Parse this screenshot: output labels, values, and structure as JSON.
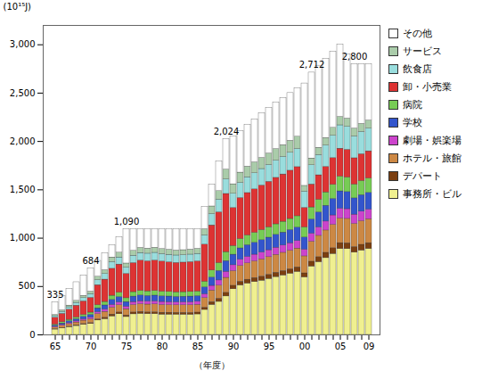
{
  "chart_data": {
    "type": "bar",
    "stacked": true,
    "xlabel": "（年度）",
    "ylabel": "(10¹⁵J)",
    "categories": [
      "65",
      null,
      null,
      null,
      null,
      "70",
      null,
      null,
      null,
      null,
      "75",
      null,
      null,
      null,
      null,
      "80",
      null,
      null,
      null,
      null,
      "85",
      null,
      null,
      null,
      null,
      "90",
      null,
      null,
      null,
      null,
      "95",
      null,
      null,
      null,
      null,
      "00",
      null,
      null,
      null,
      null,
      "05",
      null,
      null,
      null,
      "09"
    ],
    "series": [
      {
        "name": "事務所・ビル",
        "color": "#f0f090",
        "values": [
          55,
          67.1,
          79.4,
          92,
          104.8,
          113.4,
          148.8,
          163.99,
          192.3,
          214,
          185,
          212.9,
          218,
          214.9,
          214.9,
          210,
          209.9,
          209.8,
          209,
          208.5,
          212,
          258.4,
          310,
          341.6,
          397.6,
          472,
          511.6,
          530.8,
          546.9,
          561.05,
          578.9,
          598.6,
          615.3,
          633.6,
          651.8,
          594.4,
          707.2,
          752.3,
          793.968,
          837.408,
          888,
          887.4,
          850.8,
          872.3,
          888.5
        ]
      },
      {
        "name": "デパート",
        "color": "#7b3f10",
        "values": [
          4,
          4.9,
          5.8,
          6.6,
          8.1,
          9.6,
          12.8,
          14.812,
          18.1,
          18.3,
          16,
          18.8,
          19.62,
          18.9,
          19.6,
          19,
          19.2,
          18.4,
          19.1,
          18.9,
          19,
          24,
          28.9,
          33.1,
          37.6,
          36,
          38.7,
          40,
          41.2,
          42.365,
          43.6,
          44.5,
          45.6,
          45.7,
          46.9,
          42.2,
          49.7,
          52.4,
          54.8352,
          58.56,
          61.2,
          60.32,
          58.2,
          59.2,
          60.3
        ]
      },
      {
        "name": "ホテル・旅館",
        "color": "#cc8844",
        "values": [
          18,
          21.7,
          26.2,
          30,
          34.3,
          39.3,
          53.1,
          59.248,
          71.3,
          74.6,
          65,
          77.2,
          79.57,
          79.7,
          80.6,
          80,
          78.7,
          77.8,
          78.4,
          79.4,
          80,
          98.6,
          119.9,
          135,
          154.7,
          151.7,
          162.6,
          168.9,
          172.8,
          177.475,
          181.1,
          184.7,
          188,
          191.8,
          194.4,
          175.4,
          207.3,
          219.6,
          230.7648,
          242.4384,
          254.4,
          251.72,
          239.1,
          244.5,
          247.7
        ]
      },
      {
        "name": "劇場・娯楽場",
        "color": "#cc44cc",
        "values": [
          7,
          8.9,
          10.7,
          12.2,
          13.5,
          15.7,
          21.3,
          23.276,
          28.3,
          29.3,
          26,
          30.9,
          31.61,
          31.4,
          32,
          32,
          31.3,
          30.7,
          31.1,
          31.8,
          32,
          39.7,
          48.2,
          53.7,
          62.2,
          60.7,
          64.8,
          67.3,
          68.7,
          70.99,
          72.2,
          74.1,
          75.2,
          76.5,
          77.8,
          70,
          83.1,
          88,
          92.5344,
          97.2096,
          102,
          100.92,
          95.8,
          98,
          99.1
        ]
      },
      {
        "name": "学校",
        "color": "#3355cc",
        "values": [
          13,
          15.8,
          18.4,
          21.6,
          25.3,
          28.8,
          39.3,
          43.378,
          52,
          55,
          48,
          56.3,
          58.86,
          57.6,
          58.9,
          58,
          57.5,
          56.3,
          57.3,
          57.6,
          58,
          70.9,
          86.8,
          97.8,
          111.32,
          109,
          117.1,
          121,
          123.6,
          127.095,
          129.5,
          132.3,
          134.5,
          137,
          139.5,
          124.6,
          146.8,
          154.9,
          163.3632,
          170.9952,
          178.8,
          176.32,
          168,
          171.2,
          173.4
        ]
      },
      {
        "name": "病院",
        "color": "#77cc55",
        "values": [
          10,
          12.8,
          15.5,
          17.8,
          20.8,
          23.6,
          31.9,
          35.972,
          43,
          45.2,
          39,
          46.3,
          47.96,
          48.2,
          48.6,
          48,
          47.4,
          47.1,
          47.2,
          47.7,
          48,
          58.9,
          71.6,
          81.3,
          92.5,
          89.9,
          96.6,
          100.5,
          103,
          105.34,
          107.8,
          109.5,
          111.7,
          114.2,
          116.6,
          105.5,
          124.2,
          131.5,
          138.2304,
          145.2288,
          152.4,
          150.8,
          143.2,
          146.5,
          148.6
        ]
      },
      {
        "name": "卸・小売業",
        "color": "#dd3333",
        "values": [
          70,
          86.9,
          104.6,
          122,
          140,
          152.7,
          207.2,
          230.644,
          278.3,
          291,
          252,
          300.1,
          312.83,
          310.2,
          314.1,
          311,
          306.8,
          304,
          305.4,
          308.7,
          311,
          382.3,
          467.1,
          524.8,
          601.4,
          393.4,
          424,
          438.3,
          448.5,
          460.29,
          470,
          480,
          488.9,
          498.9,
          507.7,
          201.3,
          237.5,
          251.9,
          263.8944,
          276.4032,
          289.2,
          286.52,
          271.4,
          276.8,
          281.1
        ]
      },
      {
        "name": "飲食店",
        "color": "#99dddd",
        "values": [
          17,
          20.7,
          25.2,
          29.1,
          33.4,
          38.4,
          52.1,
          58.19,
          70.1,
          73.4,
          64,
          76.1,
          78.48,
          78.6,
          79.6,
          78,
          77.7,
          76.8,
          77.4,
          77.4,
          78,
          96.2,
          117.1,
          130.8,
          150.4,
          146.1,
          156.9,
          163.2,
          167,
          170.605,
          174.2,
          177.9,
          181.2,
          184.9,
          187.5,
          167.8,
          198.6,
          209.5,
          220.4832,
          230.7264,
          241.2,
          237.8,
          226.2,
          230.5,
          233.7
        ]
      },
      {
        "name": "サービス",
        "color": "#aaccaa",
        "values": [
          12,
          14.8,
          17.4,
          20.6,
          23.5,
          25.3,
          35.1,
          39.146,
          47.5,
          48.9,
          43,
          50.7,
          52.32,
          52.4,
          52.7,
          52,
          51.5,
          51.2,
          51.2,
          51.6,
          52,
          63.7,
          78.5,
          88.1,
          101.2,
          98.9,
          105.7,
          109.6,
          112.1,
          114.5,
          118.1,
          119.7,
          121.9,
          124.4,
          126.9,
          59.4,
          70.2,
          74.7,
          77.6832,
          81.984,
          86.4,
          84.68,
          80.8,
          82.9,
          84
        ]
      },
      {
        "name": "その他",
        "color": "#ffffff",
        "values": [
          129,
          151.1,
          171.4,
          192.4,
          210.5,
          237.3,
          163.7,
          177.744,
          126.7,
          159,
          352,
          220.6,
          190.75,
          198.1,
          189.1,
          202,
          209.9,
          218,
          214,
          208.5,
          200,
          230.8,
          228.7,
          304.4,
          315.2,
          492.3,
          432,
          430.3,
          446.2,
          460.29,
          474.6,
          478.9,
          487.7,
          493.2,
          500.9,
          1059.4,
          887.4,
          849.2,
          820.2432,
          787.0464,
          746.4,
          663.52,
          666.6,
          618.2,
          583.7
        ]
      }
    ],
    "ylim": [
      0,
      3200
    ],
    "yticks": [
      0,
      500,
      {
        "value": 1000,
        "label": "1,000"
      },
      {
        "value": 1500,
        "label": "1,500"
      },
      {
        "value": 2000,
        "label": "2,000"
      },
      {
        "value": 2500,
        "label": "2,500"
      },
      {
        "value": 3000,
        "label": "3,000"
      }
    ],
    "grid": false,
    "legend": "right",
    "annotations": [
      {
        "x": 0,
        "y": 335,
        "text": "335"
      },
      {
        "x": 5,
        "y": 684,
        "text": "684"
      },
      {
        "x": 10,
        "y": 1090,
        "text": "1,090"
      },
      {
        "x": 24,
        "y": 2024,
        "text": "2,024"
      },
      {
        "x": 36,
        "y": 2712,
        "text": "2,712"
      },
      {
        "x": 42,
        "y": 2800,
        "text": "2,800"
      }
    ]
  }
}
